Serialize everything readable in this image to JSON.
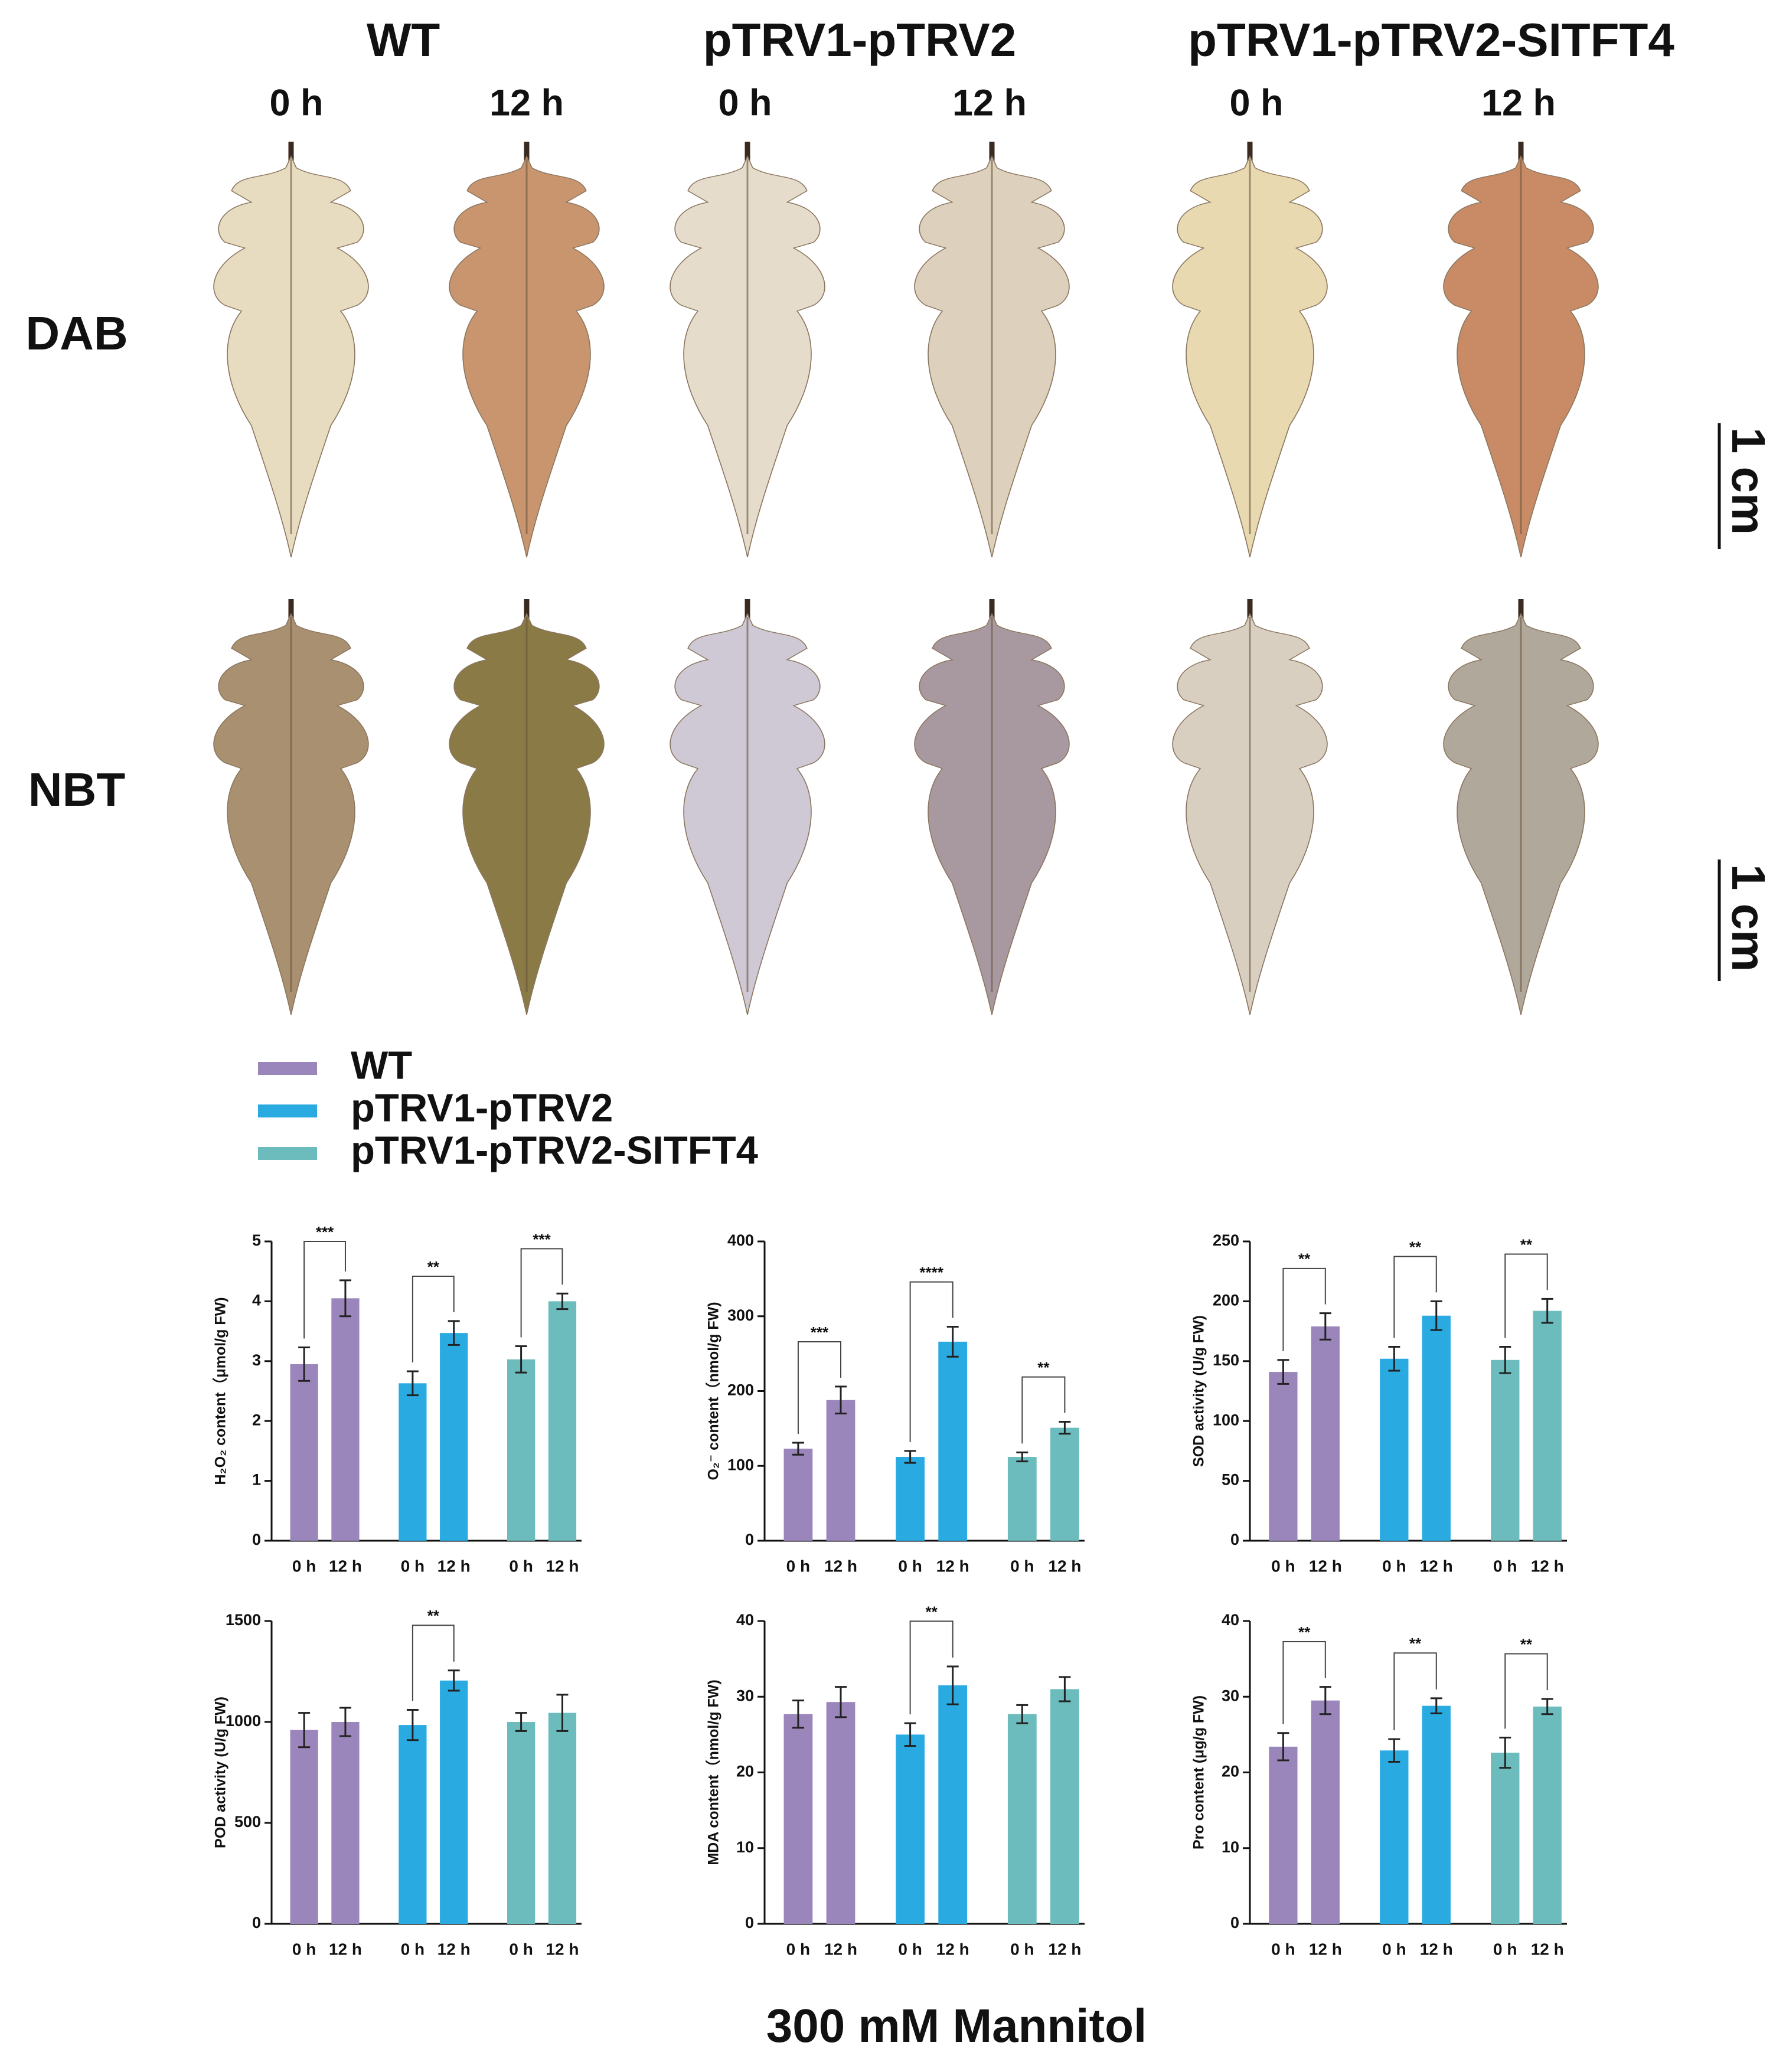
{
  "header": {
    "groups": [
      "WT",
      "pTRV1-pTRV2",
      "pTRV1-pTRV2-SITFT4"
    ],
    "times": [
      "0 h",
      "12 h",
      "0 h",
      "12 h",
      "0 h",
      "12 h"
    ],
    "rows": [
      "DAB",
      "NBT"
    ],
    "scale": [
      "1 cm",
      "1 cm"
    ]
  },
  "legend": [
    {
      "name": "WT",
      "color": "#9b86bc"
    },
    {
      "name": "pTRV1-pTRV2",
      "color": "#29abe2"
    },
    {
      "name": "pTRV1-pTRV2-SITFT4",
      "color": "#6cbcbd"
    }
  ],
  "chart_data": [
    {
      "type": "bar",
      "ylabel": "H₂O₂ content（μmol/g FW)",
      "categories": [
        "0 h",
        "12 h",
        "0 h",
        "12 h",
        "0 h",
        "12 h"
      ],
      "values": [
        2.95,
        4.05,
        2.63,
        3.47,
        3.03,
        4.0
      ],
      "errors": [
        0.28,
        0.3,
        0.2,
        0.2,
        0.22,
        0.13
      ],
      "ylim": [
        0,
        5
      ],
      "yticks": [
        0,
        1,
        2,
        3,
        4,
        5
      ],
      "annotations": [
        {
          "label": "***",
          "from": 0,
          "to": 1
        },
        {
          "label": "**",
          "from": 2,
          "to": 3
        },
        {
          "label": "***",
          "from": 4,
          "to": 5
        }
      ]
    },
    {
      "type": "bar",
      "ylabel": "O₂⁻ content（nmol/g FW)",
      "categories": [
        "0 h",
        "12 h",
        "0 h",
        "12 h",
        "0 h",
        "12 h"
      ],
      "values": [
        123,
        188,
        112,
        266,
        112,
        151
      ],
      "errors": [
        8,
        18,
        8,
        20,
        6,
        8
      ],
      "ylim": [
        0,
        400
      ],
      "yticks": [
        0,
        100,
        200,
        300,
        400
      ],
      "annotations": [
        {
          "label": "***",
          "from": 0,
          "to": 1
        },
        {
          "label": "****",
          "from": 2,
          "to": 3
        },
        {
          "label": "**",
          "from": 4,
          "to": 5
        }
      ]
    },
    {
      "type": "bar",
      "ylabel": "SOD activity (U/g FW)",
      "categories": [
        "0 h",
        "12 h",
        "0 h",
        "12 h",
        "0 h",
        "12 h"
      ],
      "values": [
        141,
        179,
        152,
        188,
        151,
        192
      ],
      "errors": [
        10,
        11,
        10,
        12,
        11,
        10
      ],
      "ylim": [
        0,
        250
      ],
      "yticks": [
        0,
        50,
        100,
        150,
        200,
        250
      ],
      "annotations": [
        {
          "label": "**",
          "from": 0,
          "to": 1
        },
        {
          "label": "**",
          "from": 2,
          "to": 3
        },
        {
          "label": "**",
          "from": 4,
          "to": 5
        }
      ]
    },
    {
      "type": "bar",
      "ylabel": "POD activity (U/g FW)",
      "categories": [
        "0 h",
        "12 h",
        "0 h",
        "12 h",
        "0 h",
        "12 h"
      ],
      "values": [
        960,
        1000,
        985,
        1205,
        1000,
        1045
      ],
      "errors": [
        85,
        70,
        75,
        50,
        45,
        90
      ],
      "ylim": [
        0,
        1500
      ],
      "yticks": [
        0,
        500,
        1000,
        1500
      ],
      "annotations": [
        {
          "label": "**",
          "from": 2,
          "to": 3
        }
      ]
    },
    {
      "type": "bar",
      "ylabel": "MDA content（nmol/g FW)",
      "categories": [
        "0 h",
        "12 h",
        "0 h",
        "12 h",
        "0 h",
        "12 h"
      ],
      "values": [
        27.7,
        29.3,
        25,
        31.5,
        27.7,
        31
      ],
      "errors": [
        1.8,
        2,
        1.5,
        2.5,
        1.2,
        1.6
      ],
      "ylim": [
        0,
        40
      ],
      "yticks": [
        0,
        10,
        20,
        30,
        40
      ],
      "annotations": [
        {
          "label": "**",
          "from": 2,
          "to": 3
        }
      ]
    },
    {
      "type": "bar",
      "ylabel": "Pro content (μg/g FW)",
      "categories": [
        "0 h",
        "12 h",
        "0 h",
        "12 h",
        "0 h",
        "12 h"
      ],
      "values": [
        23.4,
        29.5,
        22.9,
        28.8,
        22.6,
        28.7
      ],
      "errors": [
        1.8,
        1.8,
        1.5,
        1,
        2,
        1
      ],
      "ylim": [
        0,
        40
      ],
      "yticks": [
        0,
        10,
        20,
        30,
        40
      ],
      "annotations": [
        {
          "label": "**",
          "from": 0,
          "to": 1
        },
        {
          "label": "**",
          "from": 2,
          "to": 3
        },
        {
          "label": "**",
          "from": 4,
          "to": 5
        }
      ]
    }
  ],
  "footer": "300 mM Mannitol"
}
